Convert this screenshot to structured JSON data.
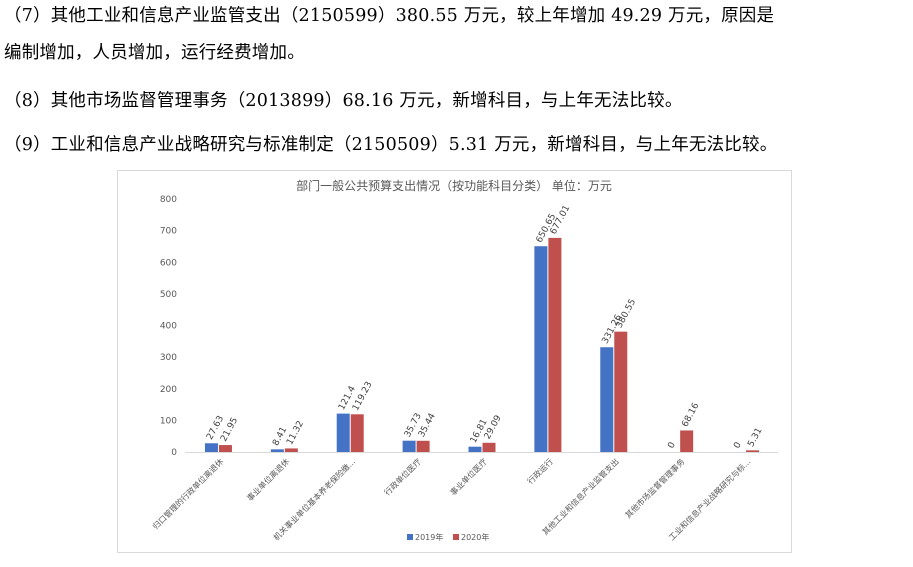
{
  "text": {
    "p1_line1": "（7）其他工业和信息产业监管支出（2150599）380.55 万元，较上年增加 49.29 万元，原因是",
    "p1_line2": "编制增加，人员增加，运行经费增加。",
    "p2": "（8）其他市场监督管理事务（2013899）68.16 万元，新增科目，与上年无法比较。",
    "p3": "（9）工业和信息产业战略研究与标准制定（2150509）5.31 万元，新增科目，与上年无法比较。"
  },
  "chart_data": {
    "type": "bar",
    "title": "部门一般公共预算支出情况（按功能科目分类） 单位：万元",
    "categories": [
      "归口管理的行政单位离退休",
      "事业单位离退休",
      "机关事业单位基本养老保险缴...",
      "行政单位医疗",
      "事业单位医疗",
      "行政运行",
      "其他工业和信息产业监管支出",
      "其他市场监督管理事务",
      "工业和信息产业战略研究与标..."
    ],
    "series": [
      {
        "name": "2019年",
        "color": "#4472c4",
        "values": [
          27.63,
          8.41,
          121.4,
          35.73,
          16.81,
          650.65,
          331.26,
          0,
          0
        ]
      },
      {
        "name": "2020年",
        "color": "#c0504d",
        "values": [
          21.95,
          11.32,
          119.23,
          35.44,
          29.09,
          677.01,
          380.55,
          68.16,
          5.31
        ]
      }
    ],
    "ylim": [
      0,
      800
    ],
    "yticks": [
      0,
      100,
      200,
      300,
      400,
      500,
      600,
      700,
      800
    ],
    "grid": false,
    "legend": "bottom"
  }
}
